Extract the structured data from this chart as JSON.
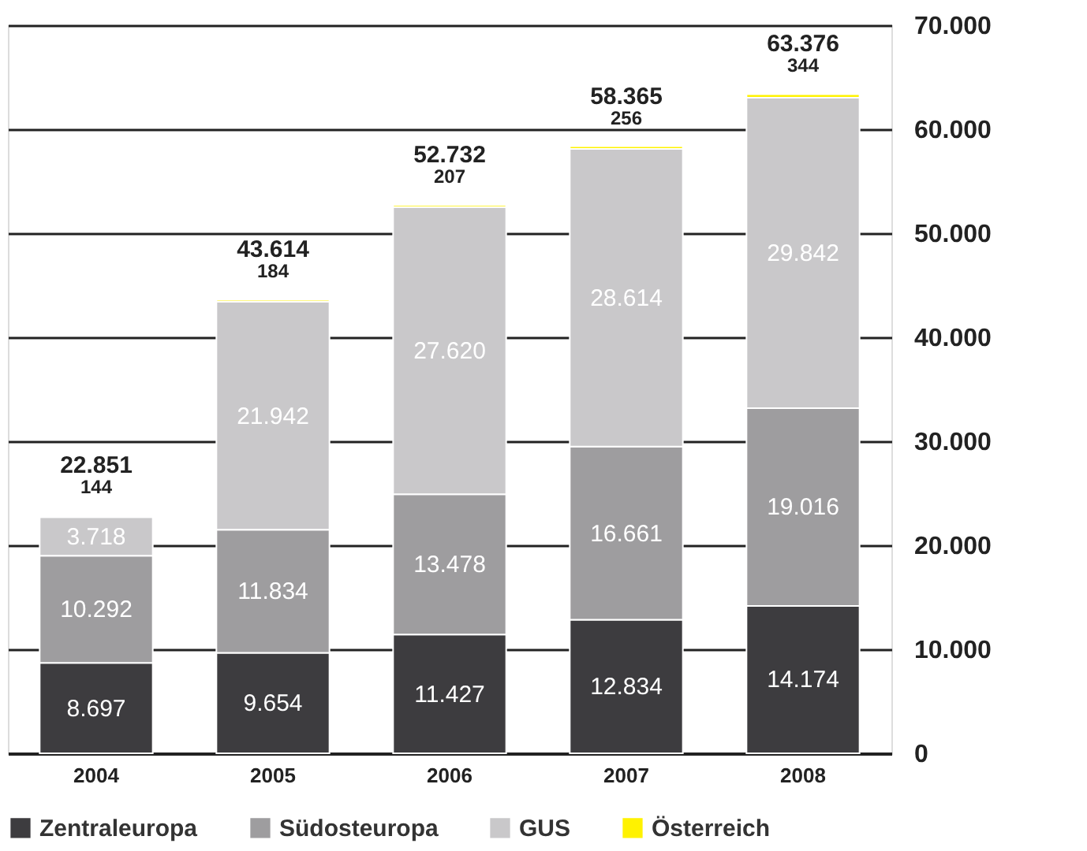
{
  "chart_data": {
    "type": "bar",
    "stacked": true,
    "categories": [
      "2004",
      "2005",
      "2006",
      "2007",
      "2008"
    ],
    "series": [
      {
        "name": "Zentraleuropa",
        "color": "#3d3c3f",
        "values": [
          8697,
          9654,
          11427,
          12834,
          14174
        ],
        "value_labels": [
          "8.697",
          "9.654",
          "11.427",
          "12.834",
          "14.174"
        ]
      },
      {
        "name": "Südosteuropa",
        "color": "#9e9d9f",
        "values": [
          10292,
          11834,
          13478,
          16661,
          19016
        ],
        "value_labels": [
          "10.292",
          "11.834",
          "13.478",
          "16.661",
          "19.016"
        ]
      },
      {
        "name": "GUS",
        "color": "#c9c8ca",
        "values": [
          3718,
          21942,
          27620,
          28614,
          29842
        ],
        "value_labels": [
          "3.718",
          "21.942",
          "27.620",
          "28.614",
          "29.842"
        ]
      },
      {
        "name": "Österreich",
        "color": "#fff200",
        "values": [
          144,
          184,
          207,
          256,
          344
        ],
        "value_labels": [
          "144",
          "184",
          "207",
          "256",
          "344"
        ]
      }
    ],
    "totals": [
      "22.851",
      "43.614",
      "52.732",
      "58.365",
      "63.376"
    ],
    "ylim": [
      0,
      70000
    ],
    "yticks": [
      0,
      {
        "value": 10000,
        "label": "10.000"
      },
      {
        "value": 20000,
        "label": "20.000"
      },
      {
        "value": 30000,
        "label": "30.000"
      },
      {
        "value": 40000,
        "label": "40.000"
      },
      {
        "value": 50000,
        "label": "50.000"
      },
      {
        "value": 60000,
        "label": "60.000"
      },
      {
        "value": 70000,
        "label": "70.000"
      }
    ],
    "grid": "y",
    "legend": "bottom"
  }
}
